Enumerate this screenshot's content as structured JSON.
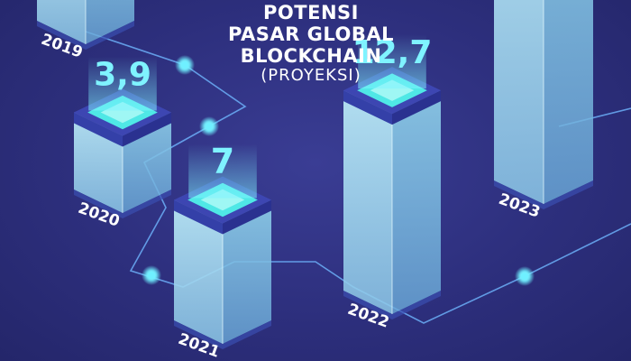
{
  "title": {
    "line1": "POTENSI",
    "line2": "PASAR GLOBAL BLOCKCHAIN",
    "line3": "(PROYEKSI)"
  },
  "colors": {
    "background": "#2d2f7d",
    "connector": "#6fb6ff",
    "node": "#6ff0ff",
    "value_text": "#7ff3ff",
    "cube_top": "#4fe8e6",
    "cube_body": "#a8dff0"
  },
  "chart_data": {
    "type": "bar",
    "title": "POTENSI PASAR GLOBAL BLOCKCHAIN (PROYEKSI)",
    "categories": [
      "2019",
      "2020",
      "2021",
      "2022",
      "2023"
    ],
    "values": [
      null,
      3.9,
      7,
      12.7,
      null
    ],
    "value_labels": [
      "",
      "3,9",
      "7",
      "12,7",
      ""
    ],
    "xlabel": "",
    "ylabel": "",
    "grid": false,
    "legend": "none"
  }
}
